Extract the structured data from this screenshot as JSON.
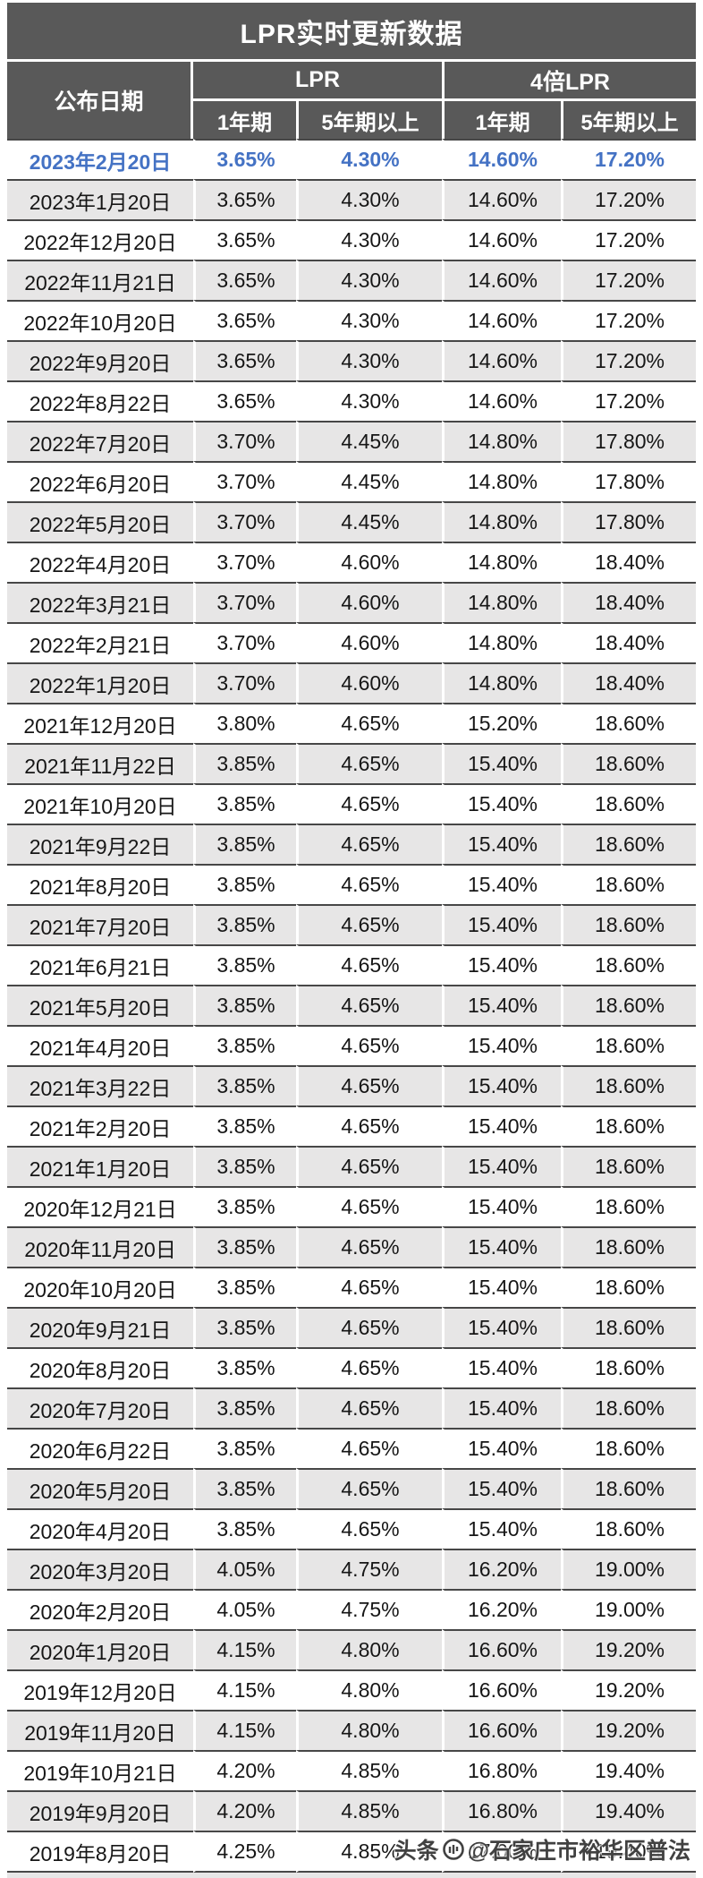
{
  "chart_data": {
    "type": "table",
    "title": "LPR实时更新数据",
    "header": {
      "date_col": "公布日期",
      "groups": [
        "LPR",
        "4倍LPR"
      ],
      "sub_cols": [
        "1年期",
        "5年期以上",
        "1年期",
        "5年期以上"
      ]
    },
    "highlight_row_index": 0,
    "columns": [
      "公布日期",
      "LPR 1年期",
      "LPR 5年期以上",
      "4倍LPR 1年期",
      "4倍LPR 5年期以上"
    ],
    "rows": [
      [
        "2023年2月20日",
        "3.65%",
        "4.30%",
        "14.60%",
        "17.20%"
      ],
      [
        "2023年1月20日",
        "3.65%",
        "4.30%",
        "14.60%",
        "17.20%"
      ],
      [
        "2022年12月20日",
        "3.65%",
        "4.30%",
        "14.60%",
        "17.20%"
      ],
      [
        "2022年11月21日",
        "3.65%",
        "4.30%",
        "14.60%",
        "17.20%"
      ],
      [
        "2022年10月20日",
        "3.65%",
        "4.30%",
        "14.60%",
        "17.20%"
      ],
      [
        "2022年9月20日",
        "3.65%",
        "4.30%",
        "14.60%",
        "17.20%"
      ],
      [
        "2022年8月22日",
        "3.65%",
        "4.30%",
        "14.60%",
        "17.20%"
      ],
      [
        "2022年7月20日",
        "3.70%",
        "4.45%",
        "14.80%",
        "17.80%"
      ],
      [
        "2022年6月20日",
        "3.70%",
        "4.45%",
        "14.80%",
        "17.80%"
      ],
      [
        "2022年5月20日",
        "3.70%",
        "4.45%",
        "14.80%",
        "17.80%"
      ],
      [
        "2022年4月20日",
        "3.70%",
        "4.60%",
        "14.80%",
        "18.40%"
      ],
      [
        "2022年3月21日",
        "3.70%",
        "4.60%",
        "14.80%",
        "18.40%"
      ],
      [
        "2022年2月21日",
        "3.70%",
        "4.60%",
        "14.80%",
        "18.40%"
      ],
      [
        "2022年1月20日",
        "3.70%",
        "4.60%",
        "14.80%",
        "18.40%"
      ],
      [
        "2021年12月20日",
        "3.80%",
        "4.65%",
        "15.20%",
        "18.60%"
      ],
      [
        "2021年11月22日",
        "3.85%",
        "4.65%",
        "15.40%",
        "18.60%"
      ],
      [
        "2021年10月20日",
        "3.85%",
        "4.65%",
        "15.40%",
        "18.60%"
      ],
      [
        "2021年9月22日",
        "3.85%",
        "4.65%",
        "15.40%",
        "18.60%"
      ],
      [
        "2021年8月20日",
        "3.85%",
        "4.65%",
        "15.40%",
        "18.60%"
      ],
      [
        "2021年7月20日",
        "3.85%",
        "4.65%",
        "15.40%",
        "18.60%"
      ],
      [
        "2021年6月21日",
        "3.85%",
        "4.65%",
        "15.40%",
        "18.60%"
      ],
      [
        "2021年5月20日",
        "3.85%",
        "4.65%",
        "15.40%",
        "18.60%"
      ],
      [
        "2021年4月20日",
        "3.85%",
        "4.65%",
        "15.40%",
        "18.60%"
      ],
      [
        "2021年3月22日",
        "3.85%",
        "4.65%",
        "15.40%",
        "18.60%"
      ],
      [
        "2021年2月20日",
        "3.85%",
        "4.65%",
        "15.40%",
        "18.60%"
      ],
      [
        "2021年1月20日",
        "3.85%",
        "4.65%",
        "15.40%",
        "18.60%"
      ],
      [
        "2020年12月21日",
        "3.85%",
        "4.65%",
        "15.40%",
        "18.60%"
      ],
      [
        "2020年11月20日",
        "3.85%",
        "4.65%",
        "15.40%",
        "18.60%"
      ],
      [
        "2020年10月20日",
        "3.85%",
        "4.65%",
        "15.40%",
        "18.60%"
      ],
      [
        "2020年9月21日",
        "3.85%",
        "4.65%",
        "15.40%",
        "18.60%"
      ],
      [
        "2020年8月20日",
        "3.85%",
        "4.65%",
        "15.40%",
        "18.60%"
      ],
      [
        "2020年7月20日",
        "3.85%",
        "4.65%",
        "15.40%",
        "18.60%"
      ],
      [
        "2020年6月22日",
        "3.85%",
        "4.65%",
        "15.40%",
        "18.60%"
      ],
      [
        "2020年5月20日",
        "3.85%",
        "4.65%",
        "15.40%",
        "18.60%"
      ],
      [
        "2020年4月20日",
        "3.85%",
        "4.65%",
        "15.40%",
        "18.60%"
      ],
      [
        "2020年3月20日",
        "4.05%",
        "4.75%",
        "16.20%",
        "19.00%"
      ],
      [
        "2020年2月20日",
        "4.05%",
        "4.75%",
        "16.20%",
        "19.00%"
      ],
      [
        "2020年1月20日",
        "4.15%",
        "4.80%",
        "16.60%",
        "19.20%"
      ],
      [
        "2019年12月20日",
        "4.15%",
        "4.80%",
        "16.60%",
        "19.20%"
      ],
      [
        "2019年11月20日",
        "4.15%",
        "4.80%",
        "16.60%",
        "19.20%"
      ],
      [
        "2019年10月21日",
        "4.20%",
        "4.85%",
        "16.80%",
        "19.40%"
      ],
      [
        "2019年9月20日",
        "4.20%",
        "4.85%",
        "16.80%",
        "19.40%"
      ],
      [
        "2019年8月20日",
        "4.25%",
        "4.85%",
        "17.00%",
        "19.40%"
      ]
    ]
  },
  "watermark": {
    "brand": "头条",
    "account": "@石家庄市裕华区普法"
  },
  "colors": {
    "header_bg": "#595959",
    "alt_row_bg": "#e7e6e6",
    "highlight_text": "#4472c4",
    "row_border": "#474747"
  }
}
